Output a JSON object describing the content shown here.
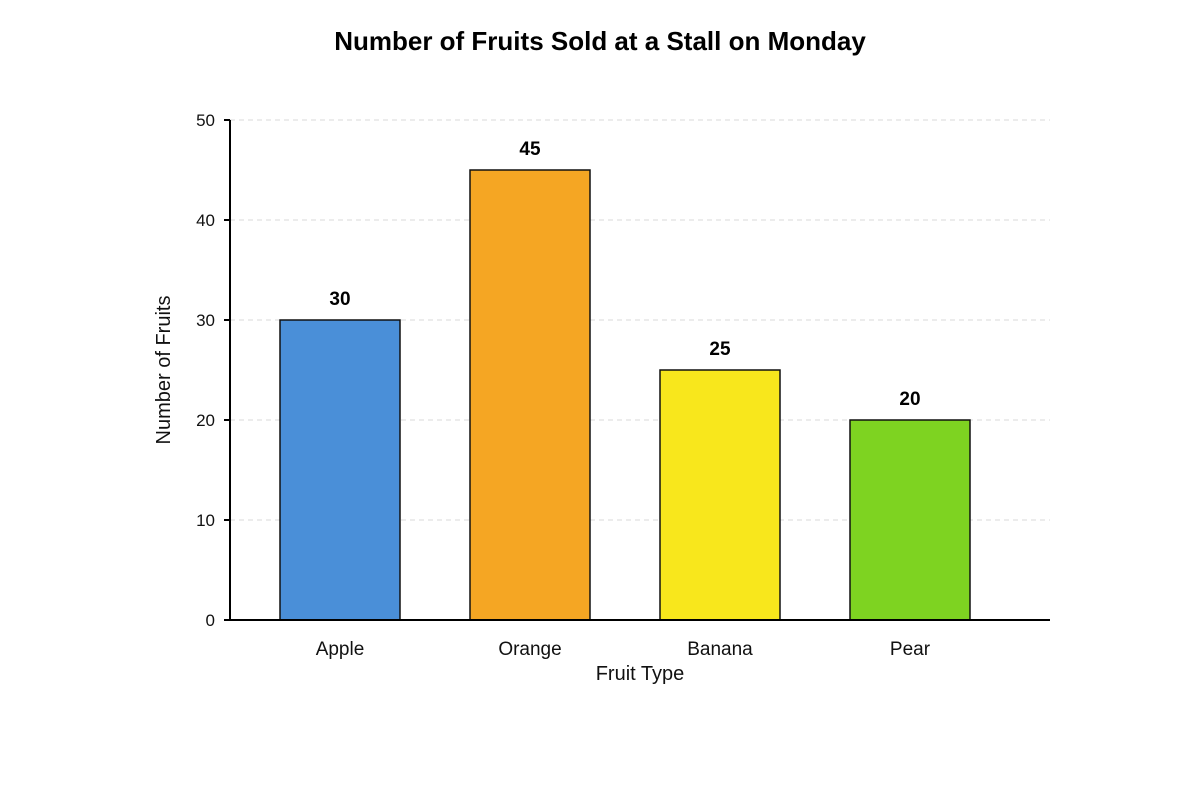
{
  "chart_data": {
    "type": "bar",
    "title": "Number of Fruits Sold at a Stall on Monday",
    "xlabel": "Fruit Type",
    "ylabel": "Number of Fruits",
    "categories": [
      "Apple",
      "Orange",
      "Banana",
      "Pear"
    ],
    "values": [
      30,
      45,
      25,
      20
    ],
    "colors": [
      "#4a8fd8",
      "#f5a623",
      "#f8e71c",
      "#7ed321"
    ],
    "ylim": [
      0,
      50
    ],
    "yticks": [
      0,
      10,
      20,
      30,
      40,
      50
    ],
    "grid": true,
    "data_labels": true
  }
}
